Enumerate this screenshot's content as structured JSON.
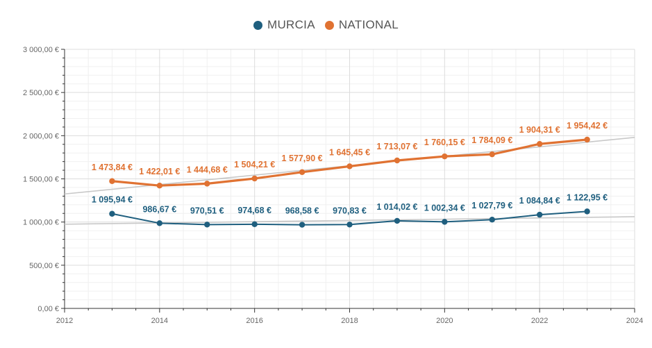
{
  "chart_data": {
    "type": "line",
    "title": "",
    "xlabel": "",
    "ylabel": "",
    "xlim": [
      2012,
      2024
    ],
    "ylim": [
      0,
      3000
    ],
    "x_ticks": [
      "2012",
      "2014",
      "2016",
      "2018",
      "2020",
      "2022",
      "2024"
    ],
    "y_ticks": [
      "0,00 €",
      "500,00 €",
      "1 000,00 €",
      "1 500,00 €",
      "2 000,00 €",
      "2 500,00 €",
      "3 000,00 €"
    ],
    "grid": true,
    "legend_position": "top-center",
    "x": [
      2013,
      2014,
      2015,
      2016,
      2017,
      2018,
      2019,
      2020,
      2021,
      2022,
      2023
    ],
    "series": [
      {
        "name": "MURCIA",
        "color": "#1f5f7f",
        "values": [
          1095.94,
          986.67,
          970.51,
          974.68,
          968.58,
          970.83,
          1014.02,
          1002.34,
          1027.79,
          1084.84,
          1122.95
        ],
        "labels": [
          "1 095,94 €",
          "986,67 €",
          "970,51 €",
          "974,68 €",
          "968,58 €",
          "970,83 €",
          "1 014,02 €",
          "1 002,34 €",
          "1 027,79 €",
          "1 084,84 €",
          "1 122,95 €"
        ]
      },
      {
        "name": "NATIONAL",
        "color": "#e07232",
        "values": [
          1473.84,
          1422.01,
          1444.68,
          1504.21,
          1577.9,
          1645.45,
          1713.07,
          1760.15,
          1784.09,
          1904.31,
          1954.42
        ],
        "labels": [
          "1 473,84 €",
          "1 422,01 €",
          "1 444,68 €",
          "1 504,21 €",
          "1 577,90 €",
          "1 645,45 €",
          "1 713,07 €",
          "1 760,15 €",
          "1 784,09 €",
          "1 904,31 €",
          "1 954,42 €"
        ]
      }
    ],
    "trendlines": [
      {
        "series": "MURCIA",
        "start": [
          2012,
          975
        ],
        "end": [
          2024,
          1062
        ],
        "color": "#c8c8c8"
      },
      {
        "series": "NATIONAL",
        "start": [
          2012,
          1325
        ],
        "end": [
          2024,
          1980
        ],
        "color": "#c8c8c8"
      }
    ]
  }
}
